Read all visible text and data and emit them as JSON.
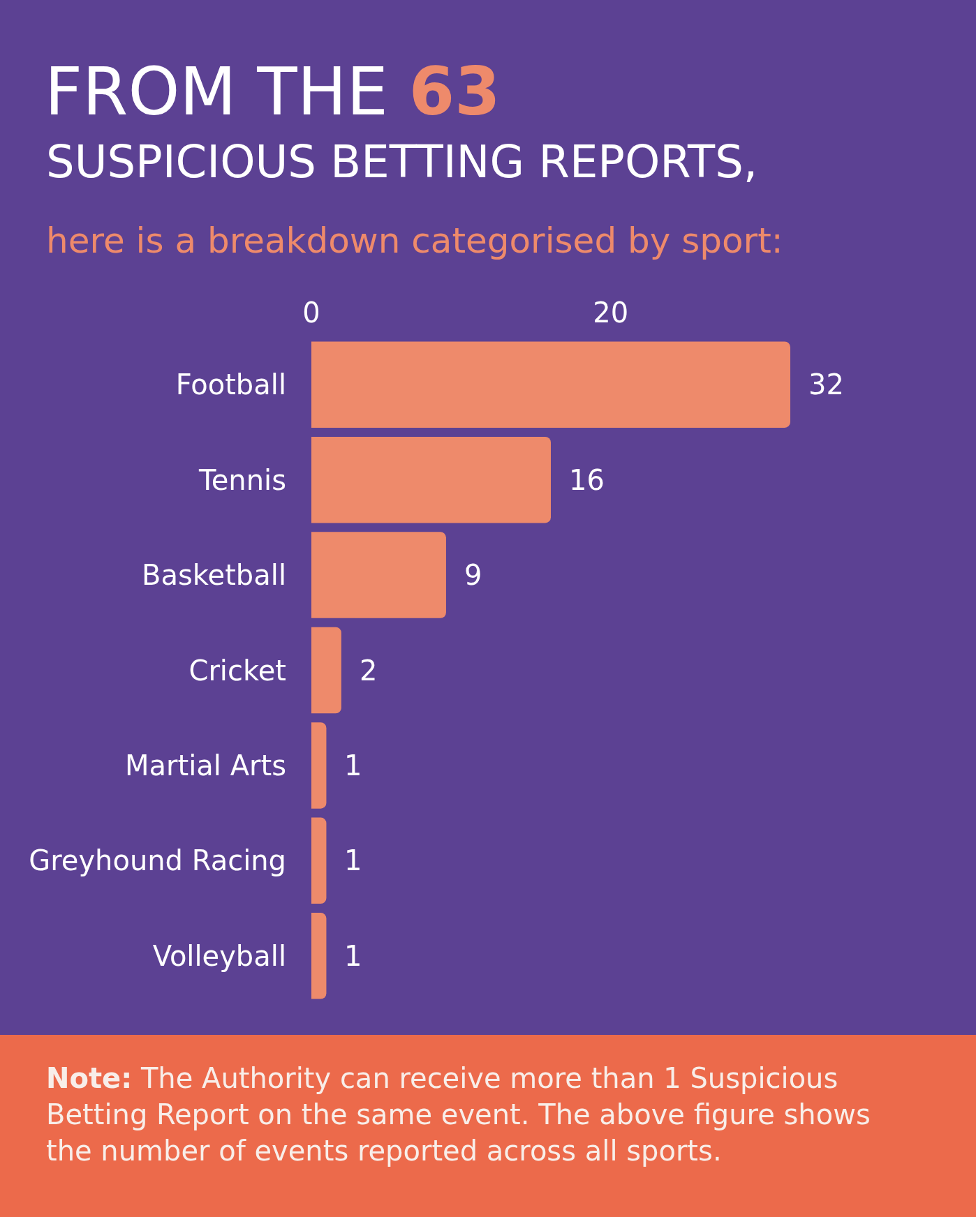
{
  "chart_data": {
    "type": "bar",
    "orientation": "horizontal",
    "title": "FROM THE 63\nSUSPICIOUS BETTING REPORTS,",
    "subtitle": "here is a breakdown categorised by sport:",
    "categories": [
      "Football",
      "Tennis",
      "Basketball",
      "Cricket",
      "Martial Arts",
      "Greyhound Racing",
      "Volleyball"
    ],
    "values": [
      32,
      16,
      9,
      2,
      1,
      1,
      1
    ],
    "color": "#ee8a6b",
    "xlim": [
      0,
      32
    ],
    "xticks": [
      0,
      20
    ],
    "data_labels": true,
    "annotations": [
      "Note: The Authority can receive more than 1 Suspicious Betting Report on the same event. The above figure shows the number of events reported across all sports."
    ]
  }
}
